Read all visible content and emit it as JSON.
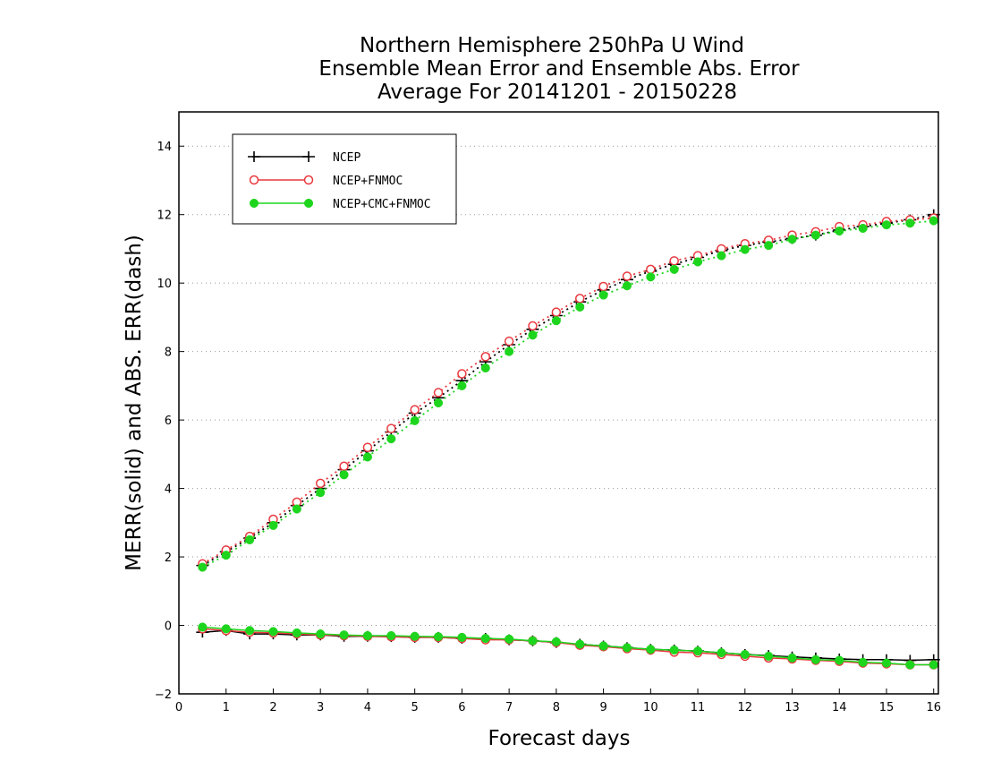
{
  "chart_data": {
    "type": "line",
    "title_lines": [
      "Northern Hemisphere 250hPa U Wind",
      "Ensemble Mean Error and Ensemble Abs. Error",
      "Average For 20141201 - 20150228"
    ],
    "xlabel": "Forecast days",
    "ylabel": "MERR(solid) and ABS. ERR(dash)",
    "xlim": [
      0,
      16.1
    ],
    "ylim": [
      -2,
      15
    ],
    "x_ticks": [
      "0",
      "1",
      "2",
      "3",
      "4",
      "5",
      "6",
      "7",
      "8",
      "9",
      "10",
      "11",
      "12",
      "13",
      "14",
      "15",
      "16"
    ],
    "y_ticks": [
      "-2",
      "0",
      "2",
      "4",
      "6",
      "8",
      "10",
      "12",
      "14"
    ],
    "grid": true,
    "legend_placement": "top-left",
    "x": [
      0.5,
      1,
      1.5,
      2,
      2.5,
      3,
      3.5,
      4,
      4.5,
      5,
      5.5,
      6,
      6.5,
      7,
      7.5,
      8,
      8.5,
      9,
      9.5,
      10,
      10.5,
      11,
      11.5,
      12,
      12.5,
      13,
      13.5,
      14,
      14.5,
      15,
      15.5,
      16
    ],
    "series": [
      {
        "name": "NCEP",
        "color": "#000000",
        "marker": "plus",
        "merr": [
          -0.2,
          -0.15,
          -0.25,
          -0.25,
          -0.28,
          -0.28,
          -0.32,
          -0.32,
          -0.33,
          -0.35,
          -0.35,
          -0.38,
          -0.38,
          -0.42,
          -0.45,
          -0.5,
          -0.55,
          -0.6,
          -0.65,
          -0.7,
          -0.72,
          -0.75,
          -0.8,
          -0.85,
          -0.88,
          -0.92,
          -0.95,
          -0.98,
          -1.0,
          -1.0,
          -1.02,
          -1.0
        ],
        "abs_err": [
          1.75,
          2.15,
          2.55,
          3.0,
          3.5,
          4.0,
          4.55,
          5.1,
          5.65,
          6.2,
          6.65,
          7.15,
          7.7,
          8.2,
          8.65,
          9.05,
          9.45,
          9.8,
          10.1,
          10.35,
          10.55,
          10.75,
          10.95,
          11.1,
          11.2,
          11.3,
          11.4,
          11.55,
          11.65,
          11.75,
          11.85,
          12.0
        ]
      },
      {
        "name": "NCEP+FNMOC",
        "color": "#e8393f",
        "marker": "circle-open",
        "merr": [
          -0.1,
          -0.15,
          -0.2,
          -0.22,
          -0.25,
          -0.28,
          -0.3,
          -0.32,
          -0.33,
          -0.35,
          -0.35,
          -0.38,
          -0.42,
          -0.42,
          -0.45,
          -0.5,
          -0.58,
          -0.62,
          -0.68,
          -0.72,
          -0.78,
          -0.8,
          -0.85,
          -0.9,
          -0.95,
          -0.98,
          -1.02,
          -1.05,
          -1.1,
          -1.12,
          -1.15,
          -1.15
        ],
        "abs_err": [
          1.8,
          2.2,
          2.6,
          3.1,
          3.6,
          4.15,
          4.65,
          5.2,
          5.75,
          6.3,
          6.8,
          7.35,
          7.85,
          8.3,
          8.75,
          9.15,
          9.55,
          9.9,
          10.2,
          10.4,
          10.65,
          10.8,
          11.0,
          11.15,
          11.25,
          11.4,
          11.5,
          11.65,
          11.7,
          11.8,
          11.85,
          11.9
        ]
      },
      {
        "name": "NCEP+CMC+FNMOC",
        "color": "#1ed51e",
        "marker": "circle-filled",
        "merr": [
          -0.05,
          -0.1,
          -0.15,
          -0.18,
          -0.22,
          -0.25,
          -0.28,
          -0.3,
          -0.3,
          -0.32,
          -0.33,
          -0.35,
          -0.38,
          -0.4,
          -0.45,
          -0.48,
          -0.55,
          -0.6,
          -0.65,
          -0.7,
          -0.72,
          -0.75,
          -0.8,
          -0.85,
          -0.9,
          -0.95,
          -1.0,
          -1.02,
          -1.08,
          -1.1,
          -1.15,
          -1.15
        ],
        "abs_err": [
          1.7,
          2.05,
          2.5,
          2.92,
          3.4,
          3.88,
          4.4,
          4.92,
          5.45,
          5.98,
          6.5,
          7.0,
          7.52,
          8.0,
          8.48,
          8.9,
          9.3,
          9.65,
          9.92,
          10.18,
          10.4,
          10.62,
          10.8,
          10.98,
          11.1,
          11.28,
          11.4,
          11.52,
          11.6,
          11.7,
          11.75,
          11.82
        ]
      }
    ]
  }
}
